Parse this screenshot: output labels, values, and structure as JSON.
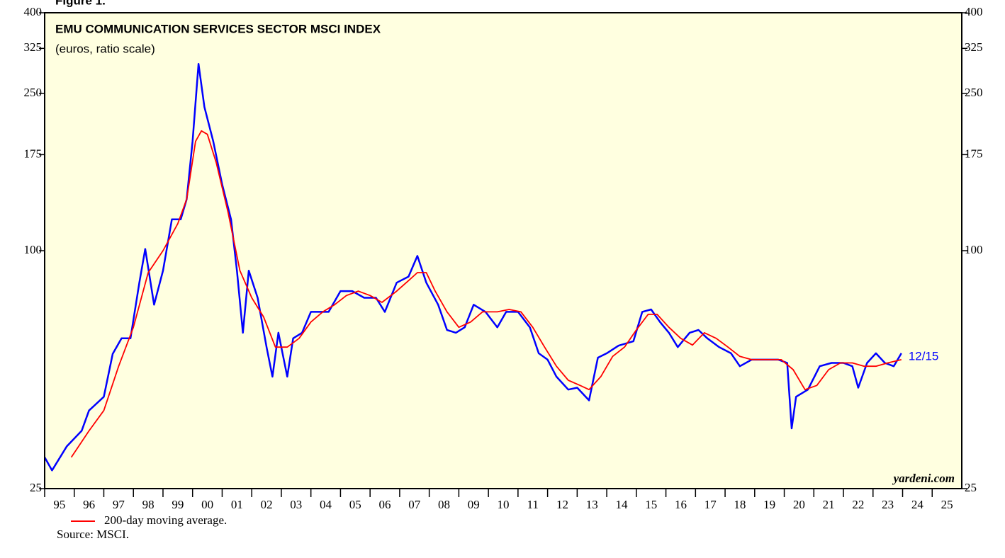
{
  "chart_data": {
    "type": "line",
    "figure_label": "Figure 1.",
    "title": "EMU COMMUNICATION SERVICES SECTOR MSCI INDEX",
    "subtitle": "(euros, ratio scale)",
    "watermark": "yardeni.com",
    "end_label": "12/15",
    "source": "Source: MSCI.",
    "log_scale": true,
    "ylim": [
      25,
      400
    ],
    "yticks": [
      25,
      100,
      175,
      250,
      325,
      400
    ],
    "xlim": [
      1995,
      2026
    ],
    "xticks": [
      {
        "value": 1995,
        "label": "95"
      },
      {
        "value": 1996,
        "label": "96"
      },
      {
        "value": 1997,
        "label": "97"
      },
      {
        "value": 1998,
        "label": "98"
      },
      {
        "value": 1999,
        "label": "99"
      },
      {
        "value": 2000,
        "label": "00"
      },
      {
        "value": 2001,
        "label": "01"
      },
      {
        "value": 2002,
        "label": "02"
      },
      {
        "value": 2003,
        "label": "03"
      },
      {
        "value": 2004,
        "label": "04"
      },
      {
        "value": 2005,
        "label": "05"
      },
      {
        "value": 2006,
        "label": "06"
      },
      {
        "value": 2007,
        "label": "07"
      },
      {
        "value": 2008,
        "label": "08"
      },
      {
        "value": 2009,
        "label": "09"
      },
      {
        "value": 2010,
        "label": "10"
      },
      {
        "value": 2011,
        "label": "11"
      },
      {
        "value": 2012,
        "label": "12"
      },
      {
        "value": 2013,
        "label": "13"
      },
      {
        "value": 2014,
        "label": "14"
      },
      {
        "value": 2015,
        "label": "15"
      },
      {
        "value": 2016,
        "label": "16"
      },
      {
        "value": 2017,
        "label": "17"
      },
      {
        "value": 2018,
        "label": "18"
      },
      {
        "value": 2019,
        "label": "19"
      },
      {
        "value": 2020,
        "label": "20"
      },
      {
        "value": 2021,
        "label": "21"
      },
      {
        "value": 2022,
        "label": "22"
      },
      {
        "value": 2023,
        "label": "23"
      },
      {
        "value": 2024,
        "label": "24"
      },
      {
        "value": 2025,
        "label": "25"
      }
    ],
    "series": [
      {
        "color": "#0000ff",
        "x": [
          1995.0,
          1995.25,
          1995.75,
          1996.25,
          1996.5,
          1997.0,
          1997.3,
          1997.6,
          1997.9,
          1998.2,
          1998.4,
          1998.7,
          1999.0,
          1999.3,
          1999.6,
          1999.8,
          2000.0,
          2000.2,
          2000.4,
          2000.7,
          2001.0,
          2001.3,
          2001.5,
          2001.7,
          2001.9,
          2002.2,
          2002.5,
          2002.7,
          2002.9,
          2003.2,
          2003.4,
          2003.7,
          2004.0,
          2004.3,
          2004.6,
          2005.0,
          2005.4,
          2005.8,
          2006.2,
          2006.5,
          2006.9,
          2007.3,
          2007.6,
          2007.9,
          2008.3,
          2008.6,
          2008.9,
          2009.2,
          2009.5,
          2009.9,
          2010.3,
          2010.6,
          2011.0,
          2011.4,
          2011.7,
          2012.0,
          2012.3,
          2012.7,
          2013.0,
          2013.4,
          2013.7,
          2014.0,
          2014.4,
          2014.9,
          2015.2,
          2015.5,
          2015.8,
          2016.1,
          2016.4,
          2016.8,
          2017.1,
          2017.4,
          2017.8,
          2018.2,
          2018.5,
          2018.9,
          2019.3,
          2019.8,
          2020.1,
          2020.25,
          2020.4,
          2020.8,
          2021.2,
          2021.6,
          2022.0,
          2022.3,
          2022.5,
          2022.8,
          2023.1,
          2023.4,
          2023.7,
          2023.96
        ],
        "values": [
          30,
          27.8,
          32,
          35,
          39.4,
          42.7,
          54.8,
          60,
          60,
          83,
          101,
          73,
          89,
          120,
          120,
          135,
          189,
          297,
          231,
          189,
          147,
          120,
          89,
          62,
          89,
          76,
          57,
          48,
          62,
          48,
          60,
          62,
          70,
          70,
          70,
          79,
          79,
          76,
          76,
          70,
          83,
          86,
          97,
          83,
          73,
          63,
          62,
          64,
          73,
          70,
          64,
          70,
          70,
          64,
          55,
          53,
          48,
          44.5,
          45,
          41.8,
          53.6,
          55,
          57.5,
          59,
          70,
          71,
          66,
          62,
          57,
          62,
          63,
          60,
          57,
          55,
          51,
          53,
          53,
          53,
          52,
          35.5,
          42.7,
          44.5,
          51,
          52,
          52,
          51,
          45,
          52,
          55,
          52,
          51,
          55
        ]
      },
      {
        "name": "200-day moving average.",
        "color": "#ff0000",
        "x": [
          1995.9,
          1996.5,
          1997.0,
          1997.5,
          1998.0,
          1998.5,
          1999.0,
          1999.5,
          1999.8,
          2000.1,
          2000.3,
          2000.5,
          2000.8,
          2001.2,
          2001.6,
          2002.0,
          2002.4,
          2002.8,
          2003.2,
          2003.6,
          2004.0,
          2004.4,
          2004.8,
          2005.2,
          2005.6,
          2006.0,
          2006.4,
          2006.9,
          2007.3,
          2007.6,
          2007.9,
          2008.2,
          2008.6,
          2009.0,
          2009.4,
          2009.8,
          2010.3,
          2010.7,
          2011.1,
          2011.5,
          2011.9,
          2012.3,
          2012.7,
          2013.1,
          2013.4,
          2013.8,
          2014.2,
          2014.6,
          2015.0,
          2015.4,
          2015.7,
          2016.1,
          2016.5,
          2016.9,
          2017.3,
          2017.7,
          2018.1,
          2018.5,
          2018.9,
          2019.4,
          2019.9,
          2020.3,
          2020.7,
          2021.1,
          2021.5,
          2021.9,
          2022.3,
          2022.7,
          2023.1,
          2023.5,
          2023.96
        ],
        "values": [
          30,
          35,
          39.4,
          51,
          64,
          88,
          100,
          117,
          135,
          189,
          201,
          197,
          167,
          125,
          89,
          76,
          68,
          57,
          57,
          60,
          66,
          70,
          73,
          77,
          79,
          77,
          74,
          79,
          84,
          88,
          88,
          79,
          70,
          64,
          66,
          70,
          70,
          71,
          70,
          64,
          57,
          51,
          47,
          45.6,
          44.5,
          48,
          54,
          57,
          63,
          69,
          69,
          64,
          60,
          57.7,
          62,
          60,
          57,
          54,
          53,
          53,
          53,
          50,
          44.5,
          45.6,
          50,
          52,
          52,
          51,
          51,
          52,
          53
        ]
      }
    ]
  }
}
